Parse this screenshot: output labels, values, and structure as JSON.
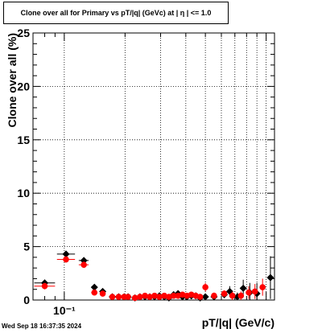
{
  "chart_data": {
    "type": "scatter",
    "title": "Clone  over all for Primary vs pT/|q| (GeVc) at |  η  | <= 1.0",
    "xlabel": "pT/|q| (GeV/c)",
    "ylabel": "Clone  over all (%)",
    "x_scale": "log",
    "xlim": [
      0.07,
      1.1
    ],
    "ylim": [
      0,
      25
    ],
    "y_ticks": [
      0,
      5,
      10,
      15,
      20,
      25
    ],
    "x_tick_labels": [
      {
        "value": 0.1,
        "label": "10⁻¹"
      }
    ],
    "grid": true,
    "series": [
      {
        "color": "#000000",
        "marker": "diamond",
        "points": [
          {
            "x": 0.08,
            "y": 1.6,
            "xerr": [
              0.071,
              0.09
            ],
            "yerr": 0.3
          },
          {
            "x": 0.102,
            "y": 4.3,
            "xerr": [
              0.092,
              0.113
            ],
            "yerr": 0.3
          },
          {
            "x": 0.125,
            "y": 3.7,
            "xerr": [
              0.118,
              0.132
            ],
            "yerr": 0.3
          },
          {
            "x": 0.141,
            "y": 1.2,
            "xerr": [
              0.136,
              0.146
            ],
            "yerr": 0.2
          },
          {
            "x": 0.155,
            "y": 0.8,
            "yerr": 0.2
          },
          {
            "x": 0.173,
            "y": 0.3,
            "yerr": 0.1
          },
          {
            "x": 0.186,
            "y": 0.3,
            "yerr": 0.1
          },
          {
            "x": 0.198,
            "y": 0.3,
            "yerr": 0.1
          },
          {
            "x": 0.207,
            "y": 0.3,
            "yerr": 0.1
          },
          {
            "x": 0.224,
            "y": 0.2,
            "yerr": 0.1
          },
          {
            "x": 0.237,
            "y": 0.3,
            "yerr": 0.1
          },
          {
            "x": 0.251,
            "y": 0.3,
            "yerr": 0.1
          },
          {
            "x": 0.265,
            "y": 0.3,
            "yerr": 0.1
          },
          {
            "x": 0.28,
            "y": 0.3,
            "yerr": 0.1
          },
          {
            "x": 0.296,
            "y": 0.4,
            "yerr": 0.1
          },
          {
            "x": 0.313,
            "y": 0.3,
            "yerr": 0.1
          },
          {
            "x": 0.33,
            "y": 0.2,
            "yerr": 0.2
          },
          {
            "x": 0.348,
            "y": 0.5,
            "yerr": 0.2
          },
          {
            "x": 0.366,
            "y": 0.6,
            "yerr": 0.2
          },
          {
            "x": 0.385,
            "y": 0.3,
            "yerr": 0.2
          },
          {
            "x": 0.405,
            "y": 0.3,
            "yerr": 0.2
          },
          {
            "x": 0.426,
            "y": 0.4,
            "yerr": 0.2
          },
          {
            "x": 0.448,
            "y": 0.4,
            "yerr": 0.2
          },
          {
            "x": 0.471,
            "y": 0.2,
            "yerr": 0.2
          },
          {
            "x": 0.5,
            "y": 0.3,
            "yerr": 0.3
          },
          {
            "x": 0.552,
            "y": 0.3,
            "yerr": 0.3
          },
          {
            "x": 0.62,
            "y": 0.5,
            "yerr": 0.3
          },
          {
            "x": 0.66,
            "y": 0.8,
            "yerr": 0.5
          },
          {
            "x": 0.72,
            "y": 0.3,
            "yerr": 0.4
          },
          {
            "x": 0.77,
            "y": 1.1,
            "yerr": 0.8
          },
          {
            "x": 0.83,
            "y": 0.7,
            "yerr": 0.9
          },
          {
            "x": 0.9,
            "y": 0.6,
            "yerr": 1.0
          },
          {
            "x": 1.05,
            "y": 2.1,
            "yerr": 2.0
          }
        ]
      },
      {
        "color": "#ff0000",
        "marker": "circle",
        "points": [
          {
            "x": 0.08,
            "y": 1.3,
            "xerr": [
              0.071,
              0.09
            ],
            "yerr": 0.3
          },
          {
            "x": 0.102,
            "y": 3.8,
            "xerr": [
              0.092,
              0.113
            ],
            "yerr": 0.3
          },
          {
            "x": 0.125,
            "y": 3.3,
            "xerr": [
              0.118,
              0.132
            ],
            "yerr": 0.3
          },
          {
            "x": 0.141,
            "y": 0.7,
            "xerr": [
              0.136,
              0.146
            ],
            "yerr": 0.2
          },
          {
            "x": 0.155,
            "y": 0.6,
            "yerr": 0.2
          },
          {
            "x": 0.173,
            "y": 0.3,
            "yerr": 0.1
          },
          {
            "x": 0.186,
            "y": 0.3,
            "yerr": 0.1
          },
          {
            "x": 0.198,
            "y": 0.3,
            "yerr": 0.1
          },
          {
            "x": 0.207,
            "y": 0.3,
            "yerr": 0.1
          },
          {
            "x": 0.224,
            "y": 0.2,
            "yerr": 0.1
          },
          {
            "x": 0.237,
            "y": 0.3,
            "yerr": 0.1
          },
          {
            "x": 0.251,
            "y": 0.4,
            "yerr": 0.1
          },
          {
            "x": 0.265,
            "y": 0.3,
            "yerr": 0.1
          },
          {
            "x": 0.28,
            "y": 0.4,
            "yerr": 0.1
          },
          {
            "x": 0.296,
            "y": 0.3,
            "yerr": 0.1
          },
          {
            "x": 0.313,
            "y": 0.4,
            "yerr": 0.1
          },
          {
            "x": 0.33,
            "y": 0.3,
            "yerr": 0.2
          },
          {
            "x": 0.348,
            "y": 0.4,
            "yerr": 0.2
          },
          {
            "x": 0.366,
            "y": 0.4,
            "yerr": 0.2
          },
          {
            "x": 0.385,
            "y": 0.5,
            "yerr": 0.2
          },
          {
            "x": 0.405,
            "y": 0.4,
            "yerr": 0.2
          },
          {
            "x": 0.426,
            "y": 0.5,
            "yerr": 0.2
          },
          {
            "x": 0.448,
            "y": 0.4,
            "yerr": 0.2
          },
          {
            "x": 0.471,
            "y": 0.3,
            "yerr": 0.2
          },
          {
            "x": 0.5,
            "y": 1.2,
            "yerr": 0.4
          },
          {
            "x": 0.552,
            "y": 0.4,
            "yerr": 0.3
          },
          {
            "x": 0.62,
            "y": 0.6,
            "yerr": 0.3
          },
          {
            "x": 0.68,
            "y": 0.4,
            "yerr": 0.4
          },
          {
            "x": 0.75,
            "y": 0.4,
            "yerr": 0.4
          },
          {
            "x": 0.82,
            "y": 0.7,
            "yerr": 0.6
          },
          {
            "x": 0.88,
            "y": 0.8,
            "yerr": 0.7
          },
          {
            "x": 0.96,
            "y": 1.2,
            "yerr": 0.8
          }
        ]
      }
    ]
  },
  "footer": {
    "timestamp": "Wed Sep 18 16:37:35 2024"
  }
}
